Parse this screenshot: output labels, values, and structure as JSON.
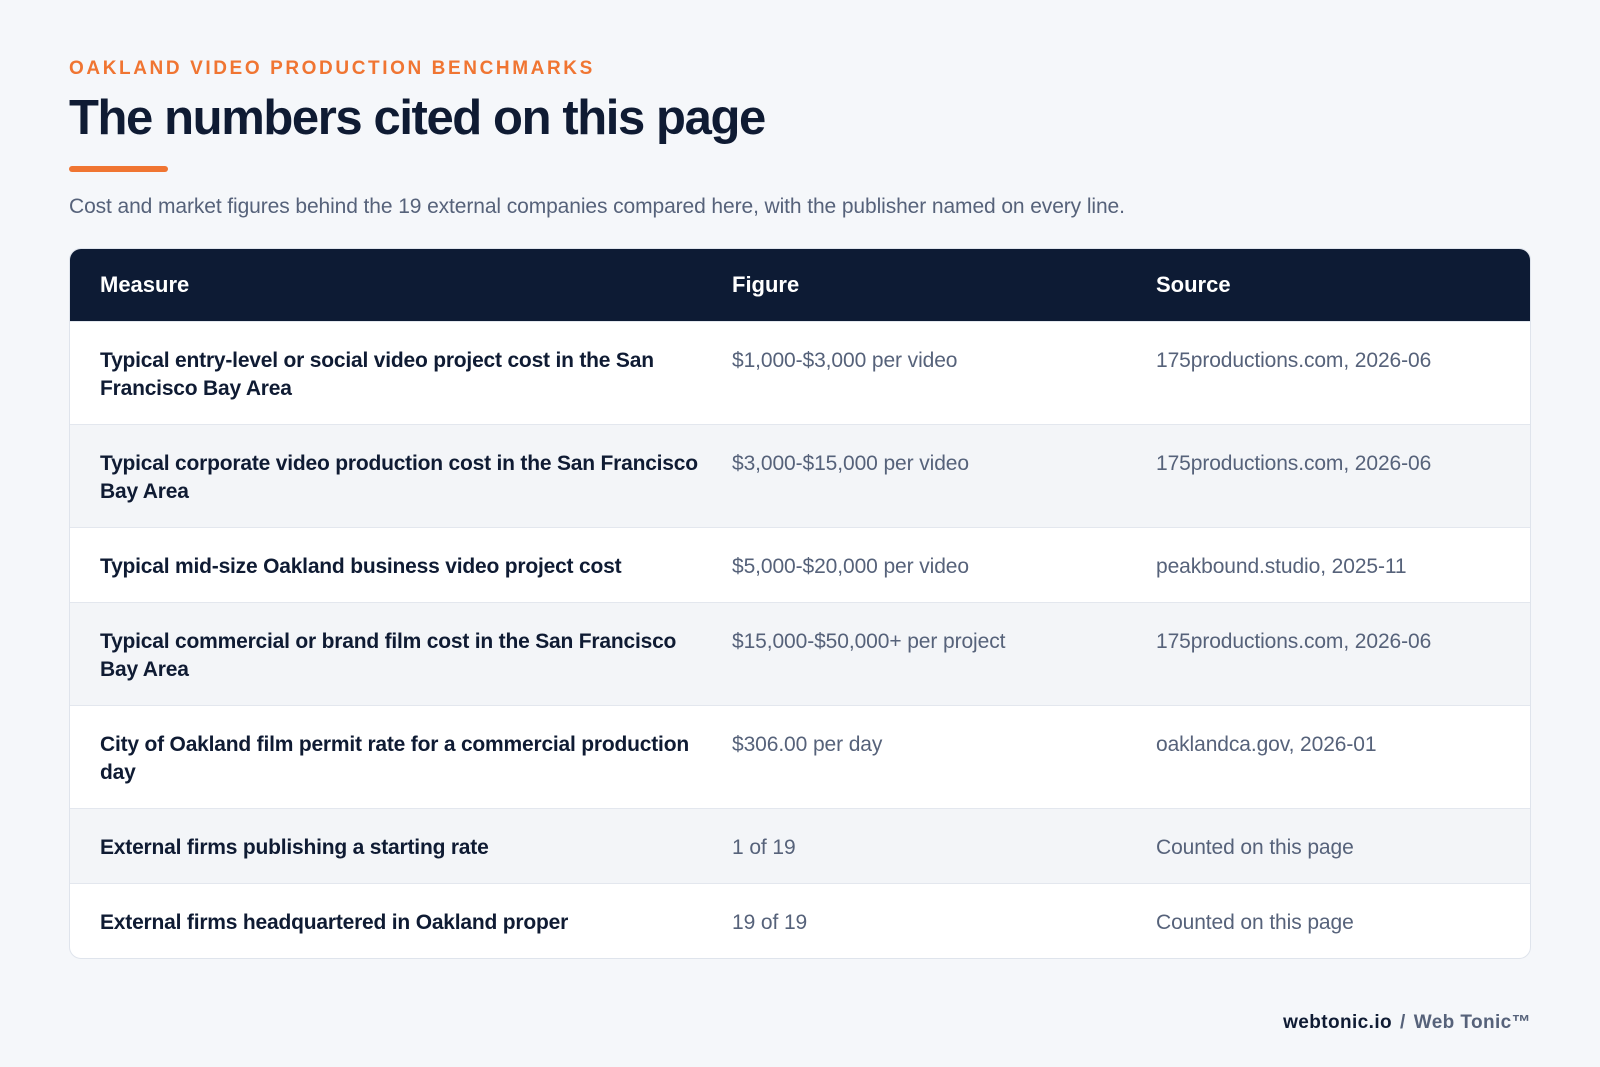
{
  "eyebrow": "OAKLAND VIDEO PRODUCTION BENCHMARKS",
  "title": "The numbers cited on this page",
  "subtitle": "Cost and market figures behind the 19 external companies compared here, with the publisher named on every line.",
  "table": {
    "headers": {
      "measure": "Measure",
      "figure": "Figure",
      "source": "Source"
    },
    "rows": [
      {
        "measure": "Typical entry-level or social video project cost in the San Francisco Bay Area",
        "figure": "$1,000-$3,000 per video",
        "source": "175productions.com, 2026-06"
      },
      {
        "measure": "Typical corporate video production cost in the San Francisco Bay Area",
        "figure": "$3,000-$15,000 per video",
        "source": "175productions.com, 2026-06"
      },
      {
        "measure": "Typical mid-size Oakland business video project cost",
        "figure": "$5,000-$20,000 per video",
        "source": "peakbound.studio, 2025-11"
      },
      {
        "measure": "Typical commercial or brand film cost in the San Francisco Bay Area",
        "figure": "$15,000-$50,000+ per project",
        "source": "175productions.com, 2026-06"
      },
      {
        "measure": "City of Oakland film permit rate for a commercial production day",
        "figure": "$306.00 per day",
        "source": "oaklandca.gov, 2026-01"
      },
      {
        "measure": "External firms publishing a starting rate",
        "figure": "1 of 19",
        "source": "Counted on this page"
      },
      {
        "measure": "External firms headquartered in Oakland proper",
        "figure": "19 of 19",
        "source": "Counted on this page"
      }
    ]
  },
  "footer": {
    "domain": "webtonic.io",
    "separator": "/",
    "brand": "Web Tonic™"
  },
  "colors": {
    "accent": "#f07532",
    "header_bg": "#0d1b34",
    "page_bg": "#f5f7fa"
  }
}
